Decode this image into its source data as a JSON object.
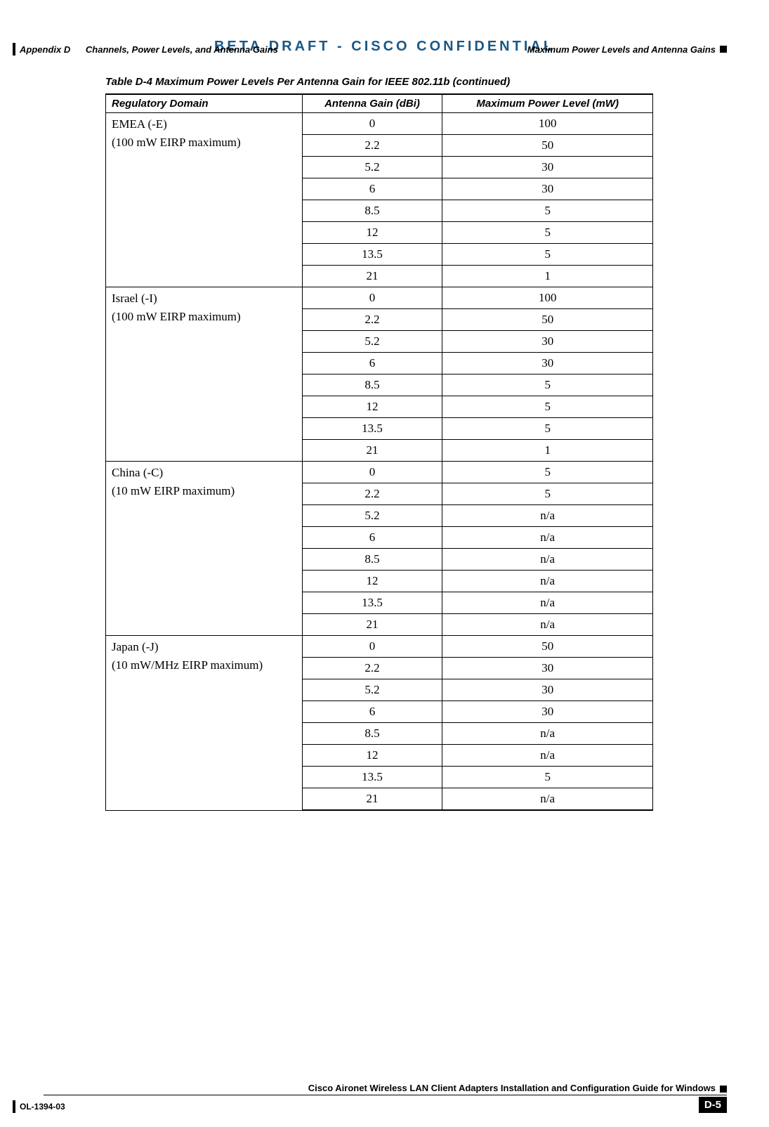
{
  "header": {
    "appendix": "Appendix D",
    "chapter": "Channels, Power Levels, and Antenna Gains",
    "section": "Maximum Power Levels and Antenna Gains"
  },
  "confidential": "BETA DRAFT - CISCO CONFIDENTIAL",
  "table": {
    "caption": "Table D-4    Maximum Power Levels Per Antenna Gain for IEEE 802.11b (continued)",
    "columns": [
      "Regulatory Domain",
      "Antenna Gain (dBi)",
      "Maximum Power Level (mW)"
    ],
    "col_widths": [
      "280px",
      "200px",
      "300px"
    ],
    "groups": [
      {
        "domain_lines": [
          "EMEA (-E)",
          "(100 mW EIRP maximum)"
        ],
        "rows": [
          {
            "gain": "0",
            "power": "100"
          },
          {
            "gain": "2.2",
            "power": "50"
          },
          {
            "gain": "5.2",
            "power": "30"
          },
          {
            "gain": "6",
            "power": "30"
          },
          {
            "gain": "8.5",
            "power": "5"
          },
          {
            "gain": "12",
            "power": "5"
          },
          {
            "gain": "13.5",
            "power": "5"
          },
          {
            "gain": "21",
            "power": "1"
          }
        ]
      },
      {
        "domain_lines": [
          "Israel (-I)",
          "(100 mW EIRP maximum)"
        ],
        "rows": [
          {
            "gain": "0",
            "power": "100"
          },
          {
            "gain": "2.2",
            "power": "50"
          },
          {
            "gain": "5.2",
            "power": "30"
          },
          {
            "gain": "6",
            "power": "30"
          },
          {
            "gain": "8.5",
            "power": "5"
          },
          {
            "gain": "12",
            "power": "5"
          },
          {
            "gain": "13.5",
            "power": "5"
          },
          {
            "gain": "21",
            "power": "1"
          }
        ]
      },
      {
        "domain_lines": [
          "China (-C)",
          "(10 mW EIRP maximum)"
        ],
        "rows": [
          {
            "gain": "0",
            "power": "5"
          },
          {
            "gain": "2.2",
            "power": "5"
          },
          {
            "gain": "5.2",
            "power": "n/a"
          },
          {
            "gain": "6",
            "power": "n/a"
          },
          {
            "gain": "8.5",
            "power": "n/a"
          },
          {
            "gain": "12",
            "power": "n/a"
          },
          {
            "gain": "13.5",
            "power": "n/a"
          },
          {
            "gain": "21",
            "power": "n/a"
          }
        ]
      },
      {
        "domain_lines": [
          "Japan (-J)",
          "(10 mW/MHz EIRP maximum)"
        ],
        "rows": [
          {
            "gain": "0",
            "power": "50"
          },
          {
            "gain": "2.2",
            "power": "30"
          },
          {
            "gain": "5.2",
            "power": "30"
          },
          {
            "gain": "6",
            "power": "30"
          },
          {
            "gain": "8.5",
            "power": "n/a"
          },
          {
            "gain": "12",
            "power": "n/a"
          },
          {
            "gain": "13.5",
            "power": "5"
          },
          {
            "gain": "21",
            "power": "n/a"
          }
        ]
      }
    ]
  },
  "footer": {
    "doc_title": "Cisco Aironet Wireless LAN Client Adapters Installation and Configuration Guide for Windows",
    "doc_id": "OL-1394-03",
    "page_num": "D-5"
  },
  "colors": {
    "confidential": "#1a5885",
    "text": "#000000",
    "background": "#ffffff"
  }
}
